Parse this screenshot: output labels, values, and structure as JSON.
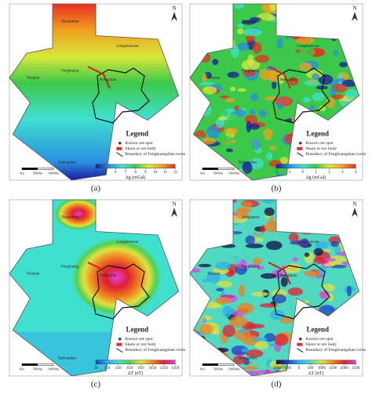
{
  "legend": {
    "title": "Legend",
    "items": [
      "Known ore spot",
      "Skarn or ore body",
      "Boundary of Fenghuangshan rocks"
    ]
  },
  "north": "N",
  "scale_bar": [
    "0m",
    "5000m",
    "10000m"
  ],
  "places": [
    "Xinqiaotun",
    "Longshanwan",
    "Yanqiao",
    "Fenghuang",
    "Shengshila",
    "Taohuadian"
  ],
  "panels": [
    {
      "label": "(a)",
      "colorbar": {
        "title": "Δg (mGal)",
        "ticks": [
          4,
          5,
          6,
          7,
          8,
          9,
          10,
          11,
          12
        ],
        "colors": [
          "#1a1aa0",
          "#2a8fe0",
          "#40e0d0",
          "#3cc84a",
          "#d8e83a",
          "#f0a020",
          "#e83020"
        ]
      }
    },
    {
      "label": "(b)",
      "colorbar": {
        "title": "Δg (mGal)",
        "ticks": [
          -2,
          -1,
          0,
          1,
          2,
          3,
          4
        ],
        "colors": [
          "#1a1aa0",
          "#2a8fe0",
          "#40e0d0",
          "#3cc84a",
          "#d8e83a",
          "#f0a020",
          "#e83020"
        ]
      }
    },
    {
      "label": "(c)",
      "colorbar": {
        "title": "ΔT (nT)",
        "ticks": [
          50,
          250,
          450,
          650,
          850,
          1050,
          1250,
          1450
        ],
        "colors": [
          "#2040c0",
          "#30a8e8",
          "#40e0d0",
          "#50d050",
          "#e0e040",
          "#f08020",
          "#e02030",
          "#e040e0"
        ]
      }
    },
    {
      "label": "(d)",
      "colorbar": {
        "title": "ΔT (nT)",
        "ticks": [
          -1000,
          -500,
          0,
          500,
          1000,
          1500,
          2000,
          2500
        ],
        "colors": [
          "#101040",
          "#2040c0",
          "#30b0e8",
          "#50d8c0",
          "#e0e040",
          "#f08020",
          "#e02030",
          "#e040e0"
        ]
      }
    }
  ]
}
